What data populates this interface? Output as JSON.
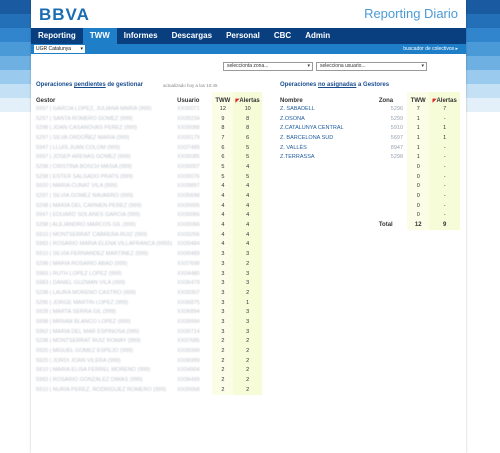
{
  "header": {
    "logo": "BBVA",
    "app_title": "Reporting Diario"
  },
  "nav": {
    "tabs": [
      "Reporting",
      "TWW",
      "Informes",
      "Descargas",
      "Personal",
      "CBC",
      "Admin"
    ],
    "active": "TWW"
  },
  "subbar": {
    "unit_select": "UGR Catalunya",
    "buscador": "buscador de colectivos ▸"
  },
  "filters": {
    "zona_placeholder": "seleccionta zona...",
    "usuario_placeholder": "selecciona usuario..."
  },
  "left": {
    "title_pre": "Operaciones ",
    "title_link": "pendientes",
    "title_post": " de gestionar",
    "updated": "actualizado hoy a las 10:45",
    "col_gestor": "Gestor",
    "col_usuario": "Usuario",
    "col_tww": "TWW",
    "col_alertas": "Alertas",
    "rows": [
      {
        "g": "5997 | GARCIA LOPEZ, JULIANA MARIA (999)",
        "u": "XX00071",
        "t": "12",
        "a": "10"
      },
      {
        "g": "5297 | SANTA ROMERO GOMEZ (999)",
        "u": "XX09234",
        "t": "9",
        "a": "8"
      },
      {
        "g": "5298 | JOAN CASANOVAS PEREZ (999)",
        "u": "XX00088",
        "t": "8",
        "a": "8"
      },
      {
        "g": "5297 | SILVA ORDOÑEZ MARIA (999)",
        "u": "XX00179",
        "t": "7",
        "a": "6"
      },
      {
        "g": "5947 | LLUIS JUAN COLOM (999)",
        "u": "XX07489",
        "t": "6",
        "a": "5"
      },
      {
        "g": "5997 | JOSEP ARENAS GOMEZ (999)",
        "u": "XX06085",
        "t": "6",
        "a": "5"
      },
      {
        "g": "5298 | CRISTINA BOSCH MASIA (999)",
        "u": "XX00007",
        "t": "5",
        "a": "4"
      },
      {
        "g": "5298 | ESTER SALGADO PRATS (999)",
        "u": "XX00076",
        "t": "5",
        "a": "5"
      },
      {
        "g": "5920 | MARIA CUNAT VILA (999)",
        "u": "XX09897",
        "t": "4",
        "a": "4"
      },
      {
        "g": "5297 | SILVIA GOMEZ NAVARRO (999)",
        "u": "XX05698",
        "t": "4",
        "a": "4"
      },
      {
        "g": "5298 | MARIA DEL CARMEN PEREZ (999)",
        "u": "XX00005",
        "t": "4",
        "a": "4"
      },
      {
        "g": "5947 | EDUARD SOLANES GARCIA (999)",
        "u": "XX00066",
        "t": "4",
        "a": "4"
      },
      {
        "g": "5298 | ALEJANDRO MARCOS GIL (999)",
        "u": "XX00066",
        "t": "4",
        "a": "4"
      },
      {
        "g": "5910 | MONTSERRAT CABRERA RUIZ (999)",
        "u": "XX03266",
        "t": "4",
        "a": "4"
      },
      {
        "g": "5983 | ROSARIO MARIA ELENA VILLAFRANCA (9955)",
        "u": "XX00484",
        "t": "4",
        "a": "4"
      },
      {
        "g": "5910 | SILVIA FERNANDEZ MARTINEZ (999)",
        "u": "XX00489",
        "t": "3",
        "a": "3"
      },
      {
        "g": "5298 | MARIA ROSARIO ABAD (999)",
        "u": "XX07698",
        "t": "3",
        "a": "2"
      },
      {
        "g": "5983 | RUTH LOPEZ LOPEZ (999)",
        "u": "XX04480",
        "t": "3",
        "a": "3"
      },
      {
        "g": "5983 | DANIEL GUZMAN VILA (999)",
        "u": "XX06479",
        "t": "3",
        "a": "3"
      },
      {
        "g": "5298 | LAURA MORENO CASTRO (999)",
        "u": "XX00307",
        "t": "3",
        "a": "2"
      },
      {
        "g": "5295 | JORGE MARTIN LOPEZ (999)",
        "u": "XX06875",
        "t": "3",
        "a": "1"
      },
      {
        "g": "5928 | MARTA SERRA GIL (999)",
        "u": "XX06894",
        "t": "3",
        "a": "3"
      },
      {
        "g": "5998 | MIRIAM BLANCO LOPEZ (999)",
        "u": "XX09994",
        "t": "3",
        "a": "3"
      },
      {
        "g": "5962 | MARIA DEL MAR ESPINOSA (999)",
        "u": "XX00714",
        "t": "3",
        "a": "3"
      },
      {
        "g": "5298 | MONTSERRAT RUIZ ROMAY (999)",
        "u": "XX07685",
        "t": "2",
        "a": "2"
      },
      {
        "g": "5920 | MIGUEL GOMEZ ESPEJO (999)",
        "u": "XX06999",
        "t": "2",
        "a": "2"
      },
      {
        "g": "5920 | JORDI JOAN VILERA (999)",
        "u": "XX06999",
        "t": "2",
        "a": "2"
      },
      {
        "g": "5910 | MARIA ELISA FERREL MORENO (999)",
        "u": "XX04904",
        "t": "2",
        "a": "2"
      },
      {
        "g": "5983 | ROSARIO GONZALEZ DIMAS (999)",
        "u": "XX06499",
        "t": "2",
        "a": "2"
      },
      {
        "g": "5910 | NURIA PEREZ, RODRIGUEZ ROMERO (999)",
        "u": "XX00068",
        "t": "2",
        "a": "2"
      }
    ]
  },
  "right": {
    "title_pre": "Operaciones ",
    "title_link": "no asignadas",
    "title_post": " a Gestores",
    "col_nombre": "Nombre",
    "col_zona": "Zona",
    "col_tww": "TWW",
    "col_alertas": "Alertas",
    "rows": [
      {
        "n": "Z. SABADELL",
        "z": "5296",
        "t": "7",
        "a": "7"
      },
      {
        "n": "Z.OSONA",
        "z": "5299",
        "t": "1",
        "a": "-"
      },
      {
        "n": "Z.CATALUNYA CENTRAL",
        "z": "5910",
        "t": "1",
        "a": "1"
      },
      {
        "n": "Z. BARCELONA SUD",
        "z": "5697",
        "t": "1",
        "a": "1"
      },
      {
        "n": "Z. VALLÈS",
        "z": "8947",
        "t": "1",
        "a": "-"
      },
      {
        "n": "Z.TERRASSA",
        "z": "5298",
        "t": "1",
        "a": "-"
      },
      {
        "n": "",
        "z": "",
        "t": "0",
        "a": "-"
      },
      {
        "n": "",
        "z": "",
        "t": "0",
        "a": "-"
      },
      {
        "n": "",
        "z": "",
        "t": "0",
        "a": "-"
      },
      {
        "n": "",
        "z": "",
        "t": "0",
        "a": "-"
      },
      {
        "n": "",
        "z": "",
        "t": "0",
        "a": "-"
      },
      {
        "n": "",
        "z": "",
        "t": "0",
        "a": "-"
      }
    ],
    "total_label": "Total",
    "total_tww": "12",
    "total_alertas": "9"
  },
  "colors": {
    "nav_bg": "#0a3f7f",
    "accent": "#1e7ec8",
    "link": "#1a4d8f"
  }
}
